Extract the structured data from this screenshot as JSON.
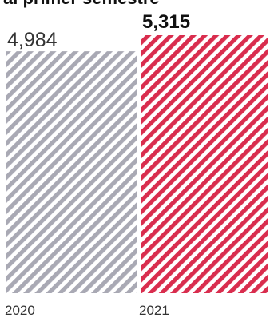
{
  "chart_data": {
    "type": "bar",
    "title": "al primer semestre",
    "categories": [
      "2020",
      "2021"
    ],
    "values": [
      4984,
      5315
    ],
    "value_labels": [
      "4,984",
      "5,315"
    ],
    "highlight_index": 1,
    "colors": {
      "bar_2020": "#a9a9b4",
      "bar_2021": "#d92d4e",
      "background": "#ffffff"
    },
    "fill_pattern": "diagonal-hatch",
    "xlabel": "",
    "ylabel": "",
    "ylim": [
      0,
      5315
    ],
    "grid": false,
    "legend": false
  }
}
